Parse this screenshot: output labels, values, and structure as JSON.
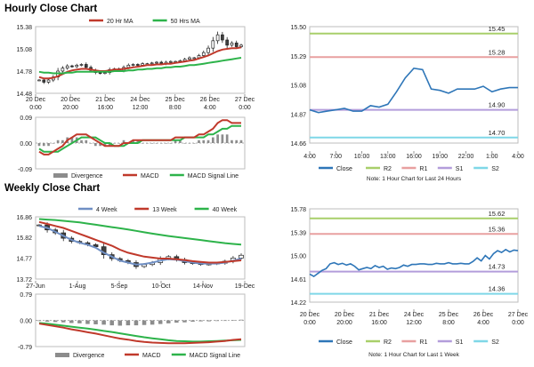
{
  "titles": {
    "hourly": "Hourly Close Chart",
    "weekly": "Weekly Close Chart"
  },
  "colors": {
    "ma_short": "#c0392b",
    "ma_long": "#2db34a",
    "four_week": "#6f8fc4",
    "macd": "#c0392b",
    "signal": "#2db34a",
    "divergence": "#8c8c8c",
    "close": "#2e76b8",
    "r2": "#a8cf6a",
    "r1": "#e8a0a0",
    "s1": "#b39ddb",
    "s2": "#7fd7e7",
    "candle_up": "#ffffff",
    "candle_down": "#404040"
  },
  "chart_data": [
    {
      "id": "hourly_candles",
      "type": "candlestick",
      "ylim": [
        14.48,
        15.38
      ],
      "yticks": [
        "15.38",
        "15.08",
        "14.78",
        "14.48"
      ],
      "xticks": [
        "20 Dec\n0:00",
        "20 Dec\n20:00",
        "21 Dec\n16:00",
        "24 Dec\n12:00",
        "25 Dec\n8:00",
        "26 Dec\n4:00",
        "27 Dec\n0:00"
      ],
      "legend": [
        "20 Hr MA",
        "50 Hrs MA"
      ],
      "close": [
        14.66,
        14.63,
        14.66,
        14.7,
        14.78,
        14.82,
        14.85,
        14.84,
        14.86,
        14.87,
        14.83,
        14.79,
        14.76,
        14.75,
        14.76,
        14.8,
        14.81,
        14.79,
        14.83,
        14.86,
        14.87,
        14.86,
        14.88,
        14.88,
        14.89,
        14.9,
        14.88,
        14.9,
        14.91,
        14.91,
        14.92,
        14.94,
        14.96,
        14.96,
        14.99,
        15.03,
        15.09,
        15.19,
        15.27,
        15.2,
        15.13,
        15.16,
        15.11,
        15.13
      ],
      "series": [
        {
          "name": "20 Hr MA",
          "values": [
            14.7,
            14.68,
            14.68,
            14.69,
            14.71,
            14.74,
            14.77,
            14.79,
            14.8,
            14.81,
            14.81,
            14.8,
            14.79,
            14.78,
            14.78,
            14.79,
            14.8,
            14.8,
            14.81,
            14.82,
            14.83,
            14.84,
            14.85,
            14.86,
            14.86,
            14.87,
            14.87,
            14.88,
            14.88,
            14.89,
            14.9,
            14.91,
            14.92,
            14.93,
            14.95,
            14.97,
            14.99,
            15.02,
            15.05,
            15.07,
            15.08,
            15.09,
            15.09,
            15.1
          ]
        },
        {
          "name": "50 Hrs MA",
          "values": [
            14.77,
            14.76,
            14.76,
            14.75,
            14.75,
            14.75,
            14.76,
            14.76,
            14.77,
            14.77,
            14.77,
            14.77,
            14.77,
            14.77,
            14.77,
            14.77,
            14.78,
            14.78,
            14.78,
            14.79,
            14.79,
            14.8,
            14.8,
            14.81,
            14.81,
            14.82,
            14.82,
            14.83,
            14.83,
            14.84,
            14.84,
            14.85,
            14.86,
            14.86,
            14.87,
            14.88,
            14.89,
            14.9,
            14.91,
            14.92,
            14.93,
            14.94,
            14.95,
            14.96
          ]
        }
      ]
    },
    {
      "id": "hourly_macd",
      "type": "bar+line",
      "ylim": [
        -0.09,
        0.09
      ],
      "yticks": [
        "0.09",
        "0.00",
        "-0.09"
      ],
      "legend": [
        "Divergence",
        "MACD",
        "MACD Signal Line"
      ],
      "series": [
        {
          "name": "MACD",
          "values": [
            -0.03,
            -0.04,
            -0.04,
            -0.03,
            -0.02,
            -0.01,
            0.01,
            0.02,
            0.03,
            0.03,
            0.03,
            0.02,
            0.01,
            0.0,
            -0.01,
            -0.01,
            -0.01,
            -0.01,
            0.0,
            0.0,
            0.01,
            0.01,
            0.01,
            0.01,
            0.01,
            0.01,
            0.01,
            0.01,
            0.01,
            0.02,
            0.02,
            0.02,
            0.02,
            0.02,
            0.03,
            0.03,
            0.04,
            0.05,
            0.07,
            0.08,
            0.08,
            0.07,
            0.07,
            0.07
          ]
        },
        {
          "name": "MACD Signal Line",
          "values": [
            -0.02,
            -0.03,
            -0.03,
            -0.03,
            -0.03,
            -0.02,
            -0.01,
            0.0,
            0.01,
            0.02,
            0.02,
            0.02,
            0.02,
            0.01,
            0.0,
            0.0,
            -0.01,
            -0.01,
            -0.01,
            0.0,
            0.0,
            0.0,
            0.01,
            0.01,
            0.01,
            0.01,
            0.01,
            0.01,
            0.01,
            0.01,
            0.01,
            0.02,
            0.02,
            0.02,
            0.02,
            0.02,
            0.03,
            0.03,
            0.04,
            0.05,
            0.05,
            0.06,
            0.06,
            0.06
          ]
        },
        {
          "name": "Divergence",
          "values": [
            -0.01,
            -0.01,
            -0.01,
            0.0,
            0.01,
            0.01,
            0.02,
            0.02,
            0.02,
            0.01,
            0.01,
            0.0,
            -0.01,
            -0.01,
            -0.01,
            -0.01,
            0.0,
            0.0,
            0.01,
            0.0,
            0.01,
            0.01,
            0.0,
            0.0,
            0.0,
            0.0,
            0.0,
            0.0,
            0.0,
            0.01,
            0.01,
            0.0,
            0.0,
            0.0,
            0.01,
            0.01,
            0.01,
            0.02,
            0.03,
            0.03,
            0.03,
            0.01,
            0.01,
            0.01
          ]
        }
      ]
    },
    {
      "id": "hourly_close",
      "type": "line",
      "ylim": [
        14.66,
        15.5
      ],
      "yticks": [
        "15.50",
        "15.29",
        "15.08",
        "14.87",
        "14.66"
      ],
      "xticks": [
        "4:00",
        "7:00",
        "10:00",
        "13:00",
        "16:00",
        "19:00",
        "22:00",
        "1:00",
        "4:00"
      ],
      "levels": [
        {
          "name": "R2",
          "value": 15.45,
          "label": "15.45",
          "color": "#a8cf6a"
        },
        {
          "name": "R1",
          "value": 15.28,
          "label": "15.28",
          "color": "#e8a0a0"
        },
        {
          "name": "S1",
          "value": 14.9,
          "label": "14.90",
          "color": "#b39ddb"
        },
        {
          "name": "S2",
          "value": 14.7,
          "label": "14.70",
          "color": "#7fd7e7"
        }
      ],
      "legend": [
        "Close",
        "R2",
        "R1",
        "S1",
        "S2"
      ],
      "note": "Note: 1 Hour Chart for Last 24 Hours",
      "series": [
        {
          "name": "Close",
          "values": [
            14.9,
            14.88,
            14.89,
            14.9,
            14.91,
            14.89,
            14.89,
            14.93,
            14.92,
            14.94,
            15.03,
            15.13,
            15.2,
            15.19,
            15.05,
            15.04,
            15.02,
            15.05,
            15.05,
            15.05,
            15.07,
            15.03,
            15.05,
            15.06,
            15.06
          ]
        }
      ]
    },
    {
      "id": "weekly_candles",
      "type": "candlestick",
      "ylim": [
        13.72,
        16.86
      ],
      "yticks": [
        "16.86",
        "15.82",
        "14.77",
        "13.72"
      ],
      "xticks": [
        "27-Jun",
        "1-Aug",
        "5-Sep",
        "10-Oct",
        "14-Nov",
        "19-Dec"
      ],
      "legend": [
        "4 Week",
        "13 Week",
        "40 Week"
      ],
      "close": [
        16.45,
        16.2,
        16.05,
        15.78,
        15.62,
        15.55,
        15.45,
        15.35,
        14.95,
        14.75,
        14.65,
        14.55,
        14.35,
        14.45,
        14.55,
        14.75,
        14.85,
        14.7,
        14.55,
        14.5,
        14.45,
        14.48,
        14.52,
        14.62,
        14.78,
        14.92
      ],
      "series": [
        {
          "name": "4 Week",
          "values": [
            16.4,
            16.3,
            16.1,
            15.9,
            15.7,
            15.55,
            15.45,
            15.3,
            15.05,
            14.85,
            14.65,
            14.55,
            14.45,
            14.48,
            14.55,
            14.65,
            14.72,
            14.7,
            14.62,
            14.55,
            14.5,
            14.5,
            14.5,
            14.55,
            14.65,
            14.75
          ]
        },
        {
          "name": "13 Week",
          "values": [
            16.6,
            16.5,
            16.4,
            16.3,
            16.15,
            16.0,
            15.85,
            15.7,
            15.55,
            15.4,
            15.2,
            15.05,
            14.95,
            14.85,
            14.8,
            14.75,
            14.75,
            14.72,
            14.68,
            14.62,
            14.58,
            14.55,
            14.55,
            14.58,
            14.62,
            14.66
          ]
        },
        {
          "name": "40 Week",
          "values": [
            16.75,
            16.72,
            16.7,
            16.66,
            16.62,
            16.58,
            16.52,
            16.46,
            16.4,
            16.34,
            16.28,
            16.22,
            16.15,
            16.08,
            16.01,
            15.95,
            15.89,
            15.84,
            15.79,
            15.74,
            15.69,
            15.63,
            15.58,
            15.53,
            15.49,
            15.46
          ]
        }
      ]
    },
    {
      "id": "weekly_macd",
      "type": "bar+line",
      "ylim": [
        -0.79,
        0.79
      ],
      "yticks": [
        "0.79",
        "0.00",
        "-0.79"
      ],
      "legend": [
        "Divergence",
        "MACD",
        "MACD Signal Line"
      ],
      "series": [
        {
          "name": "MACD",
          "values": [
            -0.1,
            -0.14,
            -0.18,
            -0.22,
            -0.27,
            -0.31,
            -0.36,
            -0.4,
            -0.45,
            -0.5,
            -0.55,
            -0.58,
            -0.62,
            -0.65,
            -0.67,
            -0.68,
            -0.69,
            -0.69,
            -0.69,
            -0.68,
            -0.67,
            -0.66,
            -0.64,
            -0.62,
            -0.59,
            -0.57
          ]
        },
        {
          "name": "MACD Signal Line",
          "values": [
            -0.08,
            -0.1,
            -0.13,
            -0.16,
            -0.19,
            -0.22,
            -0.25,
            -0.28,
            -0.32,
            -0.35,
            -0.39,
            -0.43,
            -0.47,
            -0.51,
            -0.54,
            -0.57,
            -0.6,
            -0.62,
            -0.63,
            -0.64,
            -0.64,
            -0.63,
            -0.62,
            -0.61,
            -0.6,
            -0.59
          ]
        },
        {
          "name": "Divergence",
          "values": [
            -0.02,
            -0.04,
            -0.05,
            -0.06,
            -0.08,
            -0.09,
            -0.11,
            -0.12,
            -0.13,
            -0.15,
            -0.16,
            -0.15,
            -0.15,
            -0.14,
            -0.13,
            -0.11,
            -0.09,
            -0.07,
            -0.06,
            -0.04,
            -0.03,
            -0.03,
            -0.02,
            -0.01,
            0.01,
            0.02
          ]
        }
      ]
    },
    {
      "id": "weekly_close",
      "type": "line",
      "ylim": [
        14.22,
        15.78
      ],
      "yticks": [
        "15.78",
        "15.39",
        "15.00",
        "14.61",
        "14.22"
      ],
      "xticks": [
        "20 Dec\n0:00",
        "20 Dec\n20:00",
        "21 Dec\n16:00",
        "24 Dec\n12:00",
        "25 Dec\n8:00",
        "26 Dec\n4:00",
        "27 Dec\n0:00"
      ],
      "levels": [
        {
          "name": "R2",
          "value": 15.62,
          "label": "15.62",
          "color": "#a8cf6a"
        },
        {
          "name": "R1",
          "value": 15.36,
          "label": "15.36",
          "color": "#e8a0a0"
        },
        {
          "name": "S1",
          "value": 14.73,
          "label": "14.73",
          "color": "#b39ddb"
        },
        {
          "name": "S2",
          "value": 14.36,
          "label": "14.36",
          "color": "#7fd7e7"
        }
      ],
      "legend": [
        "Close",
        "R2",
        "R1",
        "S1",
        "S2"
      ],
      "note": "Note: 1 Hour Chart for Last 1 Week",
      "series": [
        {
          "name": "Close",
          "values": [
            14.69,
            14.65,
            14.7,
            14.75,
            14.78,
            14.86,
            14.88,
            14.85,
            14.87,
            14.84,
            14.86,
            14.82,
            14.76,
            14.78,
            14.8,
            14.78,
            14.83,
            14.8,
            14.82,
            14.77,
            14.79,
            14.78,
            14.8,
            14.84,
            14.82,
            14.85,
            14.85,
            14.86,
            14.86,
            14.85,
            14.85,
            14.87,
            14.86,
            14.86,
            14.88,
            14.86,
            14.86,
            14.87,
            14.86,
            14.86,
            14.9,
            14.96,
            14.91,
            15.0,
            14.94,
            15.03,
            15.08,
            15.05,
            15.1,
            15.06,
            15.09,
            15.08
          ]
        }
      ]
    }
  ]
}
